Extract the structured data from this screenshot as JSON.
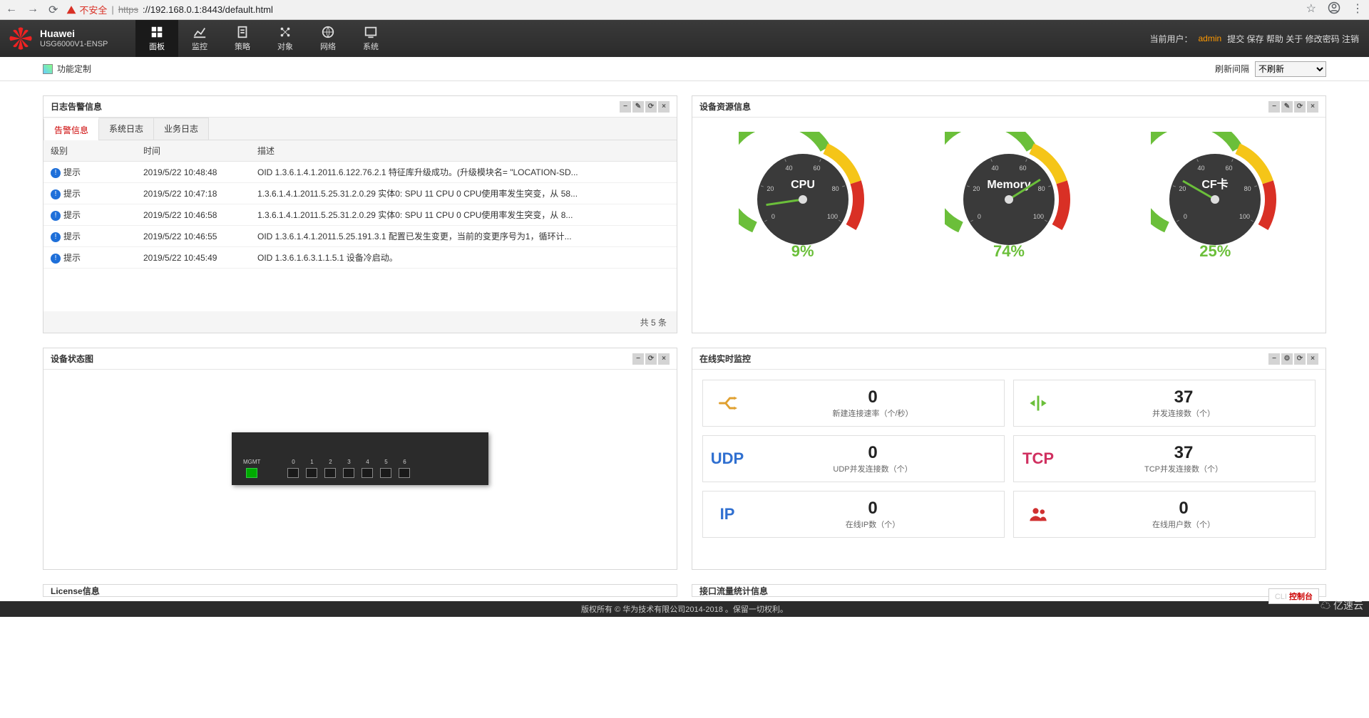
{
  "browser": {
    "insecure_label": "不安全",
    "url_scheme": "https",
    "url_rest": "://192.168.0.1:8443/default.html"
  },
  "header": {
    "brand": "Huawei",
    "model": "USG6000V1-ENSP",
    "nav": [
      {
        "label": "面板",
        "active": true
      },
      {
        "label": "监控",
        "active": false
      },
      {
        "label": "策略",
        "active": false
      },
      {
        "label": "对象",
        "active": false
      },
      {
        "label": "网络",
        "active": false
      },
      {
        "label": "系统",
        "active": false
      }
    ],
    "user_prefix": "当前用户：",
    "user": "admin",
    "links": [
      "提交",
      "保存",
      "帮助",
      "关于",
      "修改密码",
      "注销"
    ]
  },
  "subbar": {
    "customize": "功能定制",
    "refresh_label": "刷新间隔",
    "refresh_value": "不刷新"
  },
  "log_panel": {
    "title": "日志告警信息",
    "tabs": [
      "告警信息",
      "系统日志",
      "业务日志"
    ],
    "active_tab": 0,
    "columns": [
      "级别",
      "时间",
      "描述"
    ],
    "rows": [
      {
        "level": "提示",
        "time": "2019/5/22 10:48:48",
        "desc": "OID 1.3.6.1.4.1.2011.6.122.76.2.1 特征库升级成功。(升级模块名= \"LOCATION-SD..."
      },
      {
        "level": "提示",
        "time": "2019/5/22 10:47:18",
        "desc": "1.3.6.1.4.1.2011.5.25.31.2.0.29 实体0: SPU 11 CPU 0 CPU使用率发生突变，从 58..."
      },
      {
        "level": "提示",
        "time": "2019/5/22 10:46:58",
        "desc": "1.3.6.1.4.1.2011.5.25.31.2.0.29 实体0: SPU 11 CPU 0 CPU使用率发生突变，从 8..."
      },
      {
        "level": "提示",
        "time": "2019/5/22 10:46:55",
        "desc": "OID 1.3.6.1.4.1.2011.5.25.191.3.1 配置已发生变更，当前的变更序号为1，循环计..."
      },
      {
        "level": "提示",
        "time": "2019/5/22 10:45:49",
        "desc": "OID 1.3.6.1.6.3.1.1.5.1 设备冷启动。"
      }
    ],
    "footer": "共 5 条"
  },
  "resource_panel": {
    "title": "设备资源信息",
    "gauges": [
      {
        "id": "cpu",
        "label": "CPU",
        "value": 9,
        "value_text": "9%",
        "color": "#6bbf3a"
      },
      {
        "id": "mem",
        "label": "Memory",
        "value": 74,
        "value_text": "74%",
        "color": "#6bbf3a"
      },
      {
        "id": "cf",
        "label": "CF卡",
        "value": 25,
        "value_text": "25%",
        "color": "#6bbf3a"
      }
    ],
    "tick_labels": [
      "0",
      "20",
      "40",
      "60",
      "80",
      "100"
    ],
    "arc_green": "#6bbf3a",
    "arc_yellow": "#f5c518",
    "arc_red": "#d93025",
    "face": "#3a3a3a"
  },
  "device_panel": {
    "title": "设备状态图",
    "mgmt_label": "MGMT",
    "ports": [
      "0",
      "1",
      "2",
      "3",
      "4",
      "5",
      "6"
    ]
  },
  "realtime_panel": {
    "title": "在线实时监控",
    "cards": [
      {
        "icon": "split",
        "icon_color": "#e0a030",
        "value": "0",
        "label": "新建连接速率（个/秒）"
      },
      {
        "icon": "arrows",
        "icon_color": "#6bbf3a",
        "value": "37",
        "label": "并发连接数（个）"
      },
      {
        "icon_text": "UDP",
        "icon_color": "#2f6fd0",
        "value": "0",
        "label": "UDP并发连接数（个）"
      },
      {
        "icon_text": "TCP",
        "icon_color": "#d03060",
        "value": "37",
        "label": "TCP并发连接数（个）"
      },
      {
        "icon_text": "IP",
        "icon_color": "#2f6fd0",
        "value": "0",
        "label": "在线IP数（个）"
      },
      {
        "icon": "users",
        "icon_color": "#d03030",
        "value": "0",
        "label": "在线用户数（个）"
      }
    ]
  },
  "stubs": {
    "left": "License信息",
    "right": "接口流量统计信息"
  },
  "footer": {
    "copyright": "版权所有 © 华为技术有限公司2014-2018 。保留一切权利。",
    "cli_prefix": "CLI ",
    "cli_label": "控制台",
    "watermark": "亿速云"
  }
}
